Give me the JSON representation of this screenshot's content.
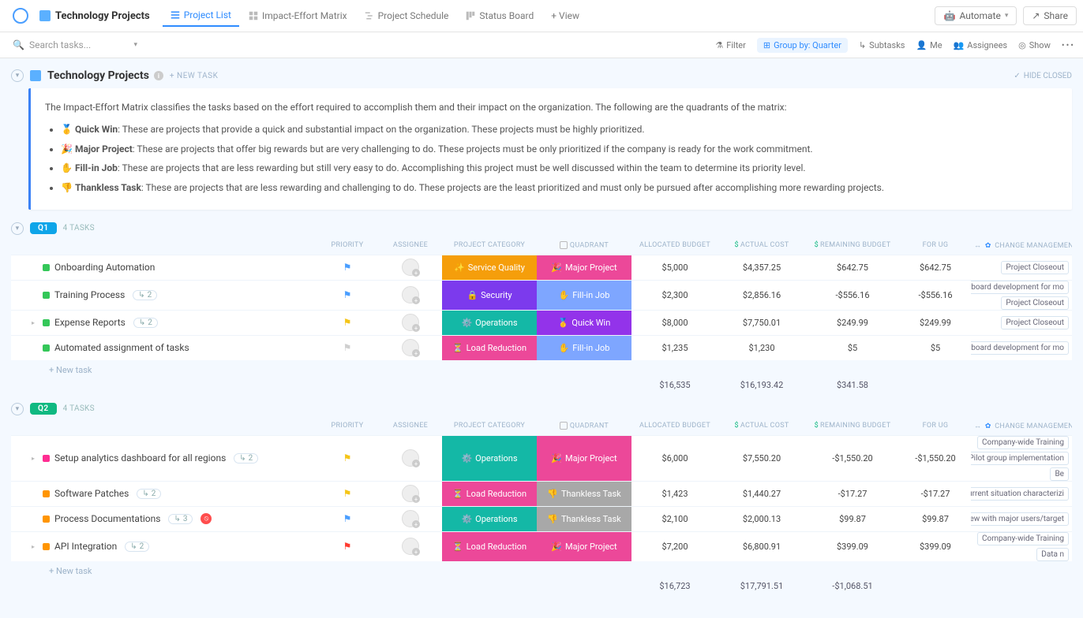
{
  "header": {
    "workspace_title": "Technology Projects",
    "tabs": [
      {
        "label": "Project List",
        "active": true
      },
      {
        "label": "Impact-Effort Matrix",
        "active": false
      },
      {
        "label": "Project Schedule",
        "active": false
      },
      {
        "label": "Status Board",
        "active": false
      }
    ],
    "add_view_label": "+ View",
    "automate_label": "Automate",
    "share_label": "Share"
  },
  "toolbar": {
    "search_placeholder": "Search tasks...",
    "filter_label": "Filter",
    "groupby_label": "Group by: Quarter",
    "subtasks_label": "Subtasks",
    "me_label": "Me",
    "assignees_label": "Assignees",
    "show_label": "Show"
  },
  "list_header": {
    "title": "Technology Projects",
    "new_task_label": "+ NEW TASK",
    "hide_closed_label": "HIDE CLOSED"
  },
  "description": {
    "intro": "The Impact-Effort Matrix classifies the tasks based on the effort required to accomplish them and their impact on the organization. The following are the quadrants of the matrix:",
    "items": [
      {
        "emoji": "🥇",
        "name": "Quick Win",
        "text": ": These are projects that provide a quick and substantial impact on the organization. These projects must be highly prioritized."
      },
      {
        "emoji": "🎉",
        "name": "Major Project",
        "text": ": These are projects that offer big rewards but are very challenging to do. These projects must be only prioritized if the company is ready for the work commitment."
      },
      {
        "emoji": "✋",
        "name": "Fill-in Job",
        "text": ": These are projects that are less rewarding but still very easy to do. Accomplishing this project must be well discussed within the team to determine its priority level."
      },
      {
        "emoji": "👎",
        "name": "Thankless Task",
        "text": ": These are projects that are less rewarding and challenging to do. These projects are the least prioritized and must only be pursued after accomplishing more rewarding projects."
      }
    ]
  },
  "columns": {
    "priority": "PRIORITY",
    "assignee": "ASSIGNEE",
    "category": "PROJECT CATEGORY",
    "quadrant": "QUADRANT",
    "allocated": "ALLOCATED BUDGET",
    "actual": "ACTUAL COST",
    "remaining": "REMAINING BUDGET",
    "forug": "FOR UG",
    "change": "CHANGE MANAGEMENT"
  },
  "category_colors": {
    "Service Quality": "#f59e0b",
    "Security": "#7c3aed",
    "Operations": "#14b8a6",
    "Load Reduction": "#ec4899"
  },
  "quadrant_colors": {
    "Major Project": "#ec4899",
    "Fill-in Job": "#7ea6ff",
    "Quick Win": "#9333ea",
    "Thankless Task": "#a8a8a8"
  },
  "status_colors": {
    "green": "#34c759",
    "orange": "#ff9500",
    "pink": "#ff2d92"
  },
  "flag_colors": {
    "blue": "#4a9eff",
    "yellow": "#f5c518",
    "grey": "#cfcfcf",
    "red": "#ff3b30"
  },
  "groups": [
    {
      "id": "q1",
      "badge": "Q1",
      "badge_color": "#0ea5e9",
      "task_count_label": "4 TASKS",
      "tasks": [
        {
          "status": "green",
          "name": "Onboarding Automation",
          "sub": null,
          "flag": "blue",
          "category": "Service Quality",
          "cat_emoji": "✨",
          "quadrant": "Major Project",
          "quad_emoji": "🎉",
          "allocated": "$5,000",
          "actual": "$4,357.25",
          "remaining": "$642.75",
          "forug": "$642.75",
          "tags": [
            "Project Closeout"
          ]
        },
        {
          "status": "green",
          "name": "Training Process",
          "sub": "2",
          "flag": "blue",
          "category": "Security",
          "cat_emoji": "🔒",
          "quadrant": "Fill-in Job",
          "quad_emoji": "✋",
          "allocated": "$2,300",
          "actual": "$2,856.16",
          "remaining": "-$556.16",
          "forug": "-$556.16",
          "tags": [
            "Dashboard development for mo",
            "Project Closeout"
          ]
        },
        {
          "status": "green",
          "name": "Expense Reports",
          "sub": "2",
          "caret": true,
          "flag": "yellow",
          "category": "Operations",
          "cat_emoji": "⚙️",
          "quadrant": "Quick Win",
          "quad_emoji": "🥇",
          "allocated": "$8,000",
          "actual": "$7,750.01",
          "remaining": "$249.99",
          "forug": "$249.99",
          "tags": [
            "Project Closeout"
          ]
        },
        {
          "status": "green",
          "name": "Automated assignment of tasks",
          "sub": null,
          "flag": "grey",
          "category": "Load Reduction",
          "cat_emoji": "⏳",
          "quadrant": "Fill-in Job",
          "quad_emoji": "✋",
          "allocated": "$1,235",
          "actual": "$1,230",
          "remaining": "$5",
          "forug": "$5",
          "tags": [
            "Dashboard development for mo"
          ]
        }
      ],
      "totals": {
        "allocated": "$16,535",
        "actual": "$16,193.42",
        "remaining": "$341.58"
      },
      "new_task_label": "+ New task"
    },
    {
      "id": "q2",
      "badge": "Q2",
      "badge_color": "#10b981",
      "task_count_label": "4 TASKS",
      "tasks": [
        {
          "status": "pink",
          "name": "Setup analytics dashboard for all regions",
          "sub": "2",
          "caret": true,
          "flag": "yellow",
          "category": "Operations",
          "cat_emoji": "⚙️",
          "quadrant": "Major Project",
          "quad_emoji": "🎉",
          "allocated": "$6,000",
          "actual": "$7,550.20",
          "remaining": "-$1,550.20",
          "forug": "-$1,550.20",
          "tags": [
            "Company-wide Training",
            "Pilot group implementation",
            "Be"
          ]
        },
        {
          "status": "orange",
          "name": "Software Patches",
          "sub": "2",
          "flag": "yellow",
          "category": "Load Reduction",
          "cat_emoji": "⏳",
          "quadrant": "Thankless Task",
          "quad_emoji": "👎",
          "allocated": "$1,423",
          "actual": "$1,440.27",
          "remaining": "-$17.27",
          "forug": "-$17.27",
          "tags": [
            "Current situation characterizi"
          ]
        },
        {
          "status": "orange",
          "name": "Process Documentations",
          "sub": "3",
          "blocked": true,
          "flag": "blue",
          "category": "Operations",
          "cat_emoji": "⚙️",
          "quadrant": "Thankless Task",
          "quad_emoji": "👎",
          "allocated": "$2,100",
          "actual": "$2,000.13",
          "remaining": "$99.87",
          "forug": "$99.87",
          "tags": [
            "Interview with major users/target"
          ]
        },
        {
          "status": "orange",
          "name": "API Integration",
          "sub": "2",
          "caret": true,
          "flag": "red",
          "category": "Load Reduction",
          "cat_emoji": "⏳",
          "quadrant": "Major Project",
          "quad_emoji": "🎉",
          "allocated": "$7,200",
          "actual": "$6,800.91",
          "remaining": "$399.09",
          "forug": "$399.09",
          "tags": [
            "Company-wide Training",
            "Data n"
          ]
        }
      ],
      "totals": {
        "allocated": "$16,723",
        "actual": "$17,791.51",
        "remaining": "-$1,068.51"
      },
      "new_task_label": "+ New task"
    }
  ]
}
